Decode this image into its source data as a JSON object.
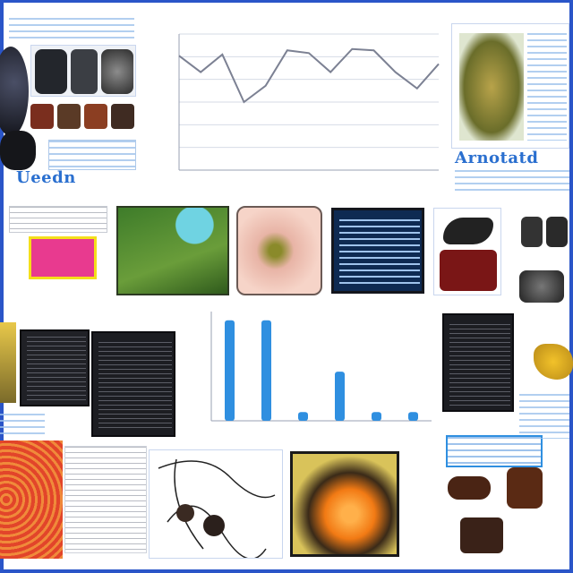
{
  "captions": {
    "left": "Ueedn",
    "right": "Arnotatd"
  },
  "line_chart": {
    "type": "line",
    "title": "",
    "x": [
      "1",
      "2",
      "3",
      "4",
      "5",
      "6",
      "7",
      "8",
      "9",
      "10",
      "11",
      "12",
      "13"
    ],
    "values": [
      84,
      72,
      85,
      50,
      62,
      88,
      86,
      72,
      89,
      88,
      72,
      60,
      78
    ],
    "ylim": [
      0,
      100
    ],
    "grid": true,
    "line_color": "#7c8193"
  },
  "bar_chart": {
    "type": "bar",
    "title": "",
    "categories": [
      "",
      "",
      "",
      "",
      "",
      ""
    ],
    "values": [
      92,
      92,
      8,
      45,
      8,
      8
    ],
    "ylim": [
      0,
      100
    ],
    "grid": false,
    "bar_color": "#2f8fe0"
  },
  "colors": {
    "frame": "#2a55c8",
    "accent": "#2f8fe0",
    "caption": "#2a6fcf"
  }
}
